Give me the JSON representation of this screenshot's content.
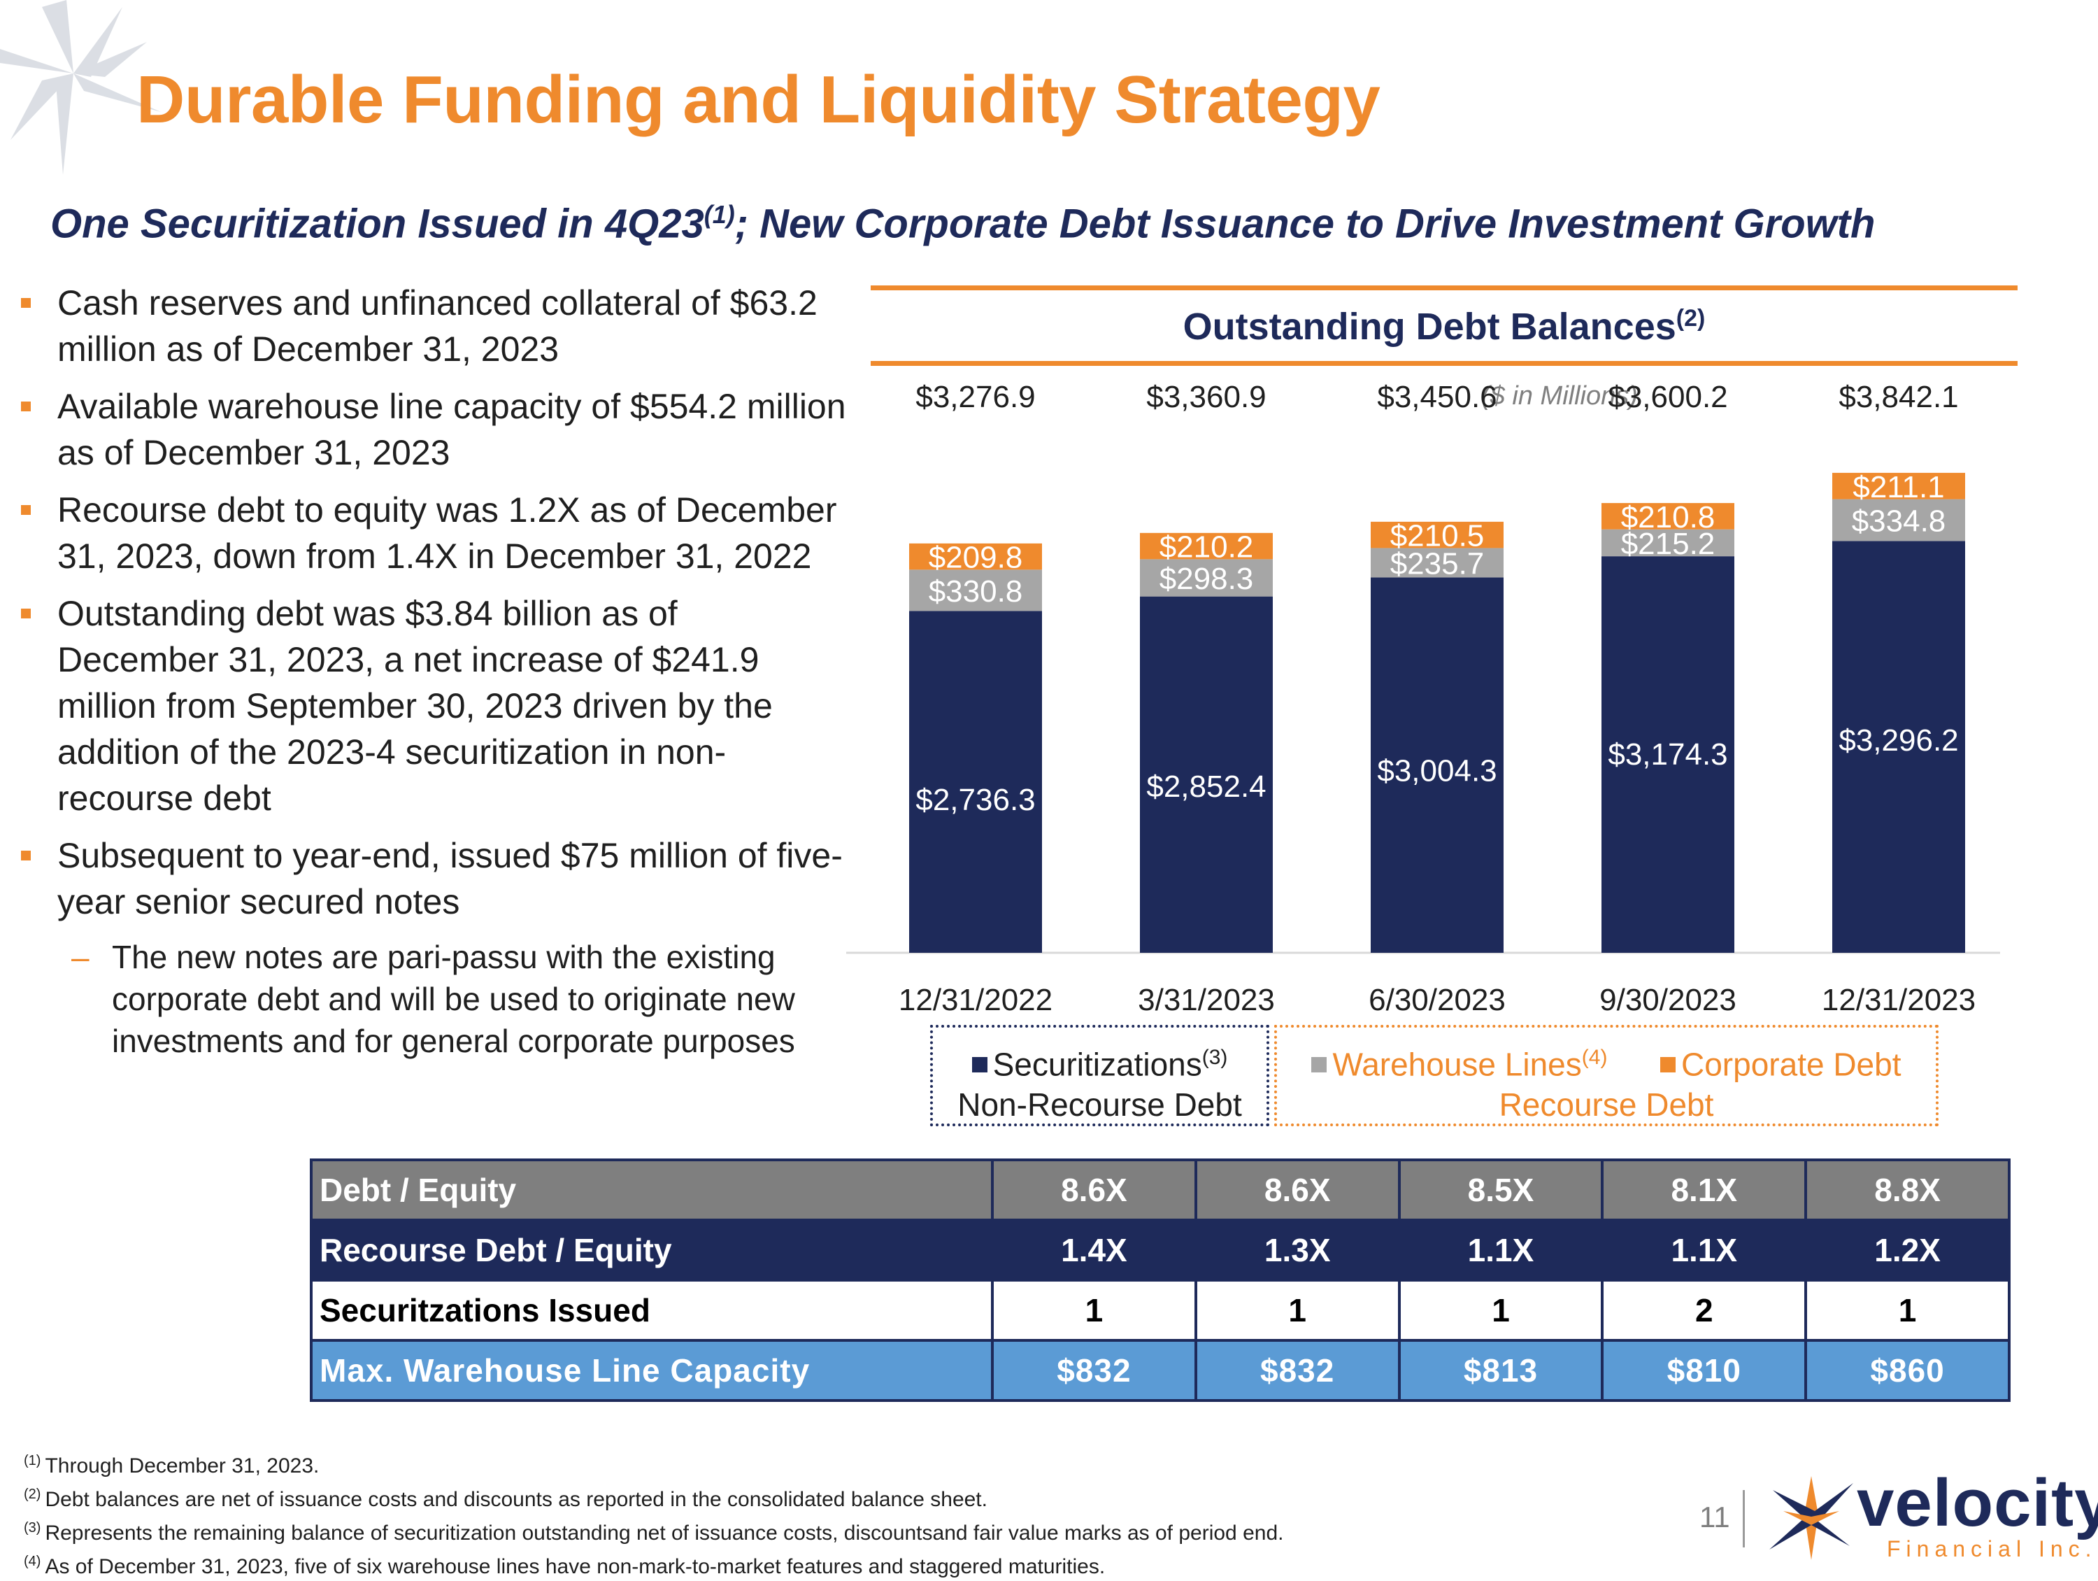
{
  "header": {
    "title": "Durable Funding and Liquidity Strategy",
    "subtitle_part1": "One Securitization Issued in 4Q23",
    "subtitle_sup": "(1)",
    "subtitle_part2": "; New Corporate Debt Issuance to Drive Investment Growth"
  },
  "bullets": [
    "Cash reserves and unfinanced collateral of $63.2 million as of December 31, 2023",
    "Available warehouse line capacity of $554.2 million as of December 31, 2023",
    "Recourse debt to equity was 1.2X as of December 31, 2023, down from 1.4X in December 31, 2022",
    "Outstanding debt was $3.84 billion as of December 31, 2023, a net increase of $241.9 million from September 30, 2023 driven by the addition of the 2023-4 securitization in non-recourse debt",
    "Subsequent to year-end, issued $75 million of five-year senior secured notes"
  ],
  "sub_bullet": "The new notes are pari-passu with the existing corporate debt and will be used to originate new investments and for general corporate purposes",
  "chart_title": "Outstanding Debt Balances",
  "chart_title_sup": "(2)",
  "chart_data": {
    "type": "bar",
    "stacked": true,
    "title": "Outstanding Debt Balances",
    "subtitle": "($ in Millions)",
    "categories": [
      "12/31/2022",
      "3/31/2023",
      "6/30/2023",
      "9/30/2023",
      "12/31/2023"
    ],
    "series": [
      {
        "name": "Securitizations",
        "color": "#1e2a5a",
        "label_color": "#ffffff",
        "values": [
          2736.3,
          2852.4,
          3004.3,
          3174.3,
          3296.2
        ],
        "labels": [
          "$2,736.3",
          "$2,852.4",
          "$3,004.3",
          "$3,174.3",
          "$3,296.2"
        ]
      },
      {
        "name": "Warehouse Lines",
        "color": "#a6a6a6",
        "label_color": "#ffffff",
        "values": [
          330.8,
          298.3,
          235.7,
          215.2,
          334.8
        ],
        "labels": [
          "$330.8",
          "$298.3",
          "$235.7",
          "$215.2",
          "$334.8"
        ]
      },
      {
        "name": "Corporate Debt",
        "color": "#ef8a2d",
        "label_color": "#ffffff",
        "values": [
          209.8,
          210.2,
          210.5,
          210.8,
          211.1
        ],
        "labels": [
          "$209.8",
          "$210.2",
          "$210.5",
          "$210.8",
          "$211.1"
        ]
      }
    ],
    "totals": [
      "$3,276.9",
      "$3,360.9",
      "$3,450.6",
      "$3,600.2",
      "$3,842.1"
    ],
    "ylim": [
      0,
      4200
    ]
  },
  "legend": {
    "securitizations_label": "Securitizations",
    "securitizations_sup": "(3)",
    "non_recourse_label": "Non-Recourse Debt",
    "warehouse_label": "Warehouse Lines",
    "warehouse_sup": "(4)",
    "corporate_label": "Corporate Debt",
    "recourse_label": "Recourse Debt"
  },
  "table": {
    "rows": [
      {
        "label": "Debt / Equity",
        "values": [
          "8.6X",
          "8.6X",
          "8.5X",
          "8.1X",
          "8.8X"
        ]
      },
      {
        "label": "Recourse Debt / Equity",
        "values": [
          "1.4X",
          "1.3X",
          "1.1X",
          "1.1X",
          "1.2X"
        ]
      },
      {
        "label": "Securitzations Issued",
        "values": [
          "1",
          "1",
          "1",
          "2",
          "1"
        ]
      },
      {
        "label": "Max. Warehouse Line Capacity",
        "values": [
          "$832",
          "$832",
          "$813",
          "$810",
          "$860"
        ]
      }
    ]
  },
  "footnotes": [
    {
      "num": "(1)",
      "text": "Through December 31, 2023."
    },
    {
      "num": "(2)",
      "text": "Debt balances are net of issuance costs and discounts as reported in the consolidated balance sheet."
    },
    {
      "num": "(3)",
      "text": "Represents the remaining balance of securitization outstanding net of issuance costs, discountsand fair value marks as of period end."
    },
    {
      "num": "(4)",
      "text": "As of December 31, 2023, five of six warehouse lines have non-mark-to-market features and staggered maturities."
    }
  ],
  "page_number": "11",
  "logo": {
    "wordmark": "velocity",
    "tagline": "Financial Inc."
  },
  "colors": {
    "accent": "#ef8a2d",
    "navy": "#1e2a5a",
    "gray": "#a6a6a6",
    "blue": "#5b9bd5"
  }
}
